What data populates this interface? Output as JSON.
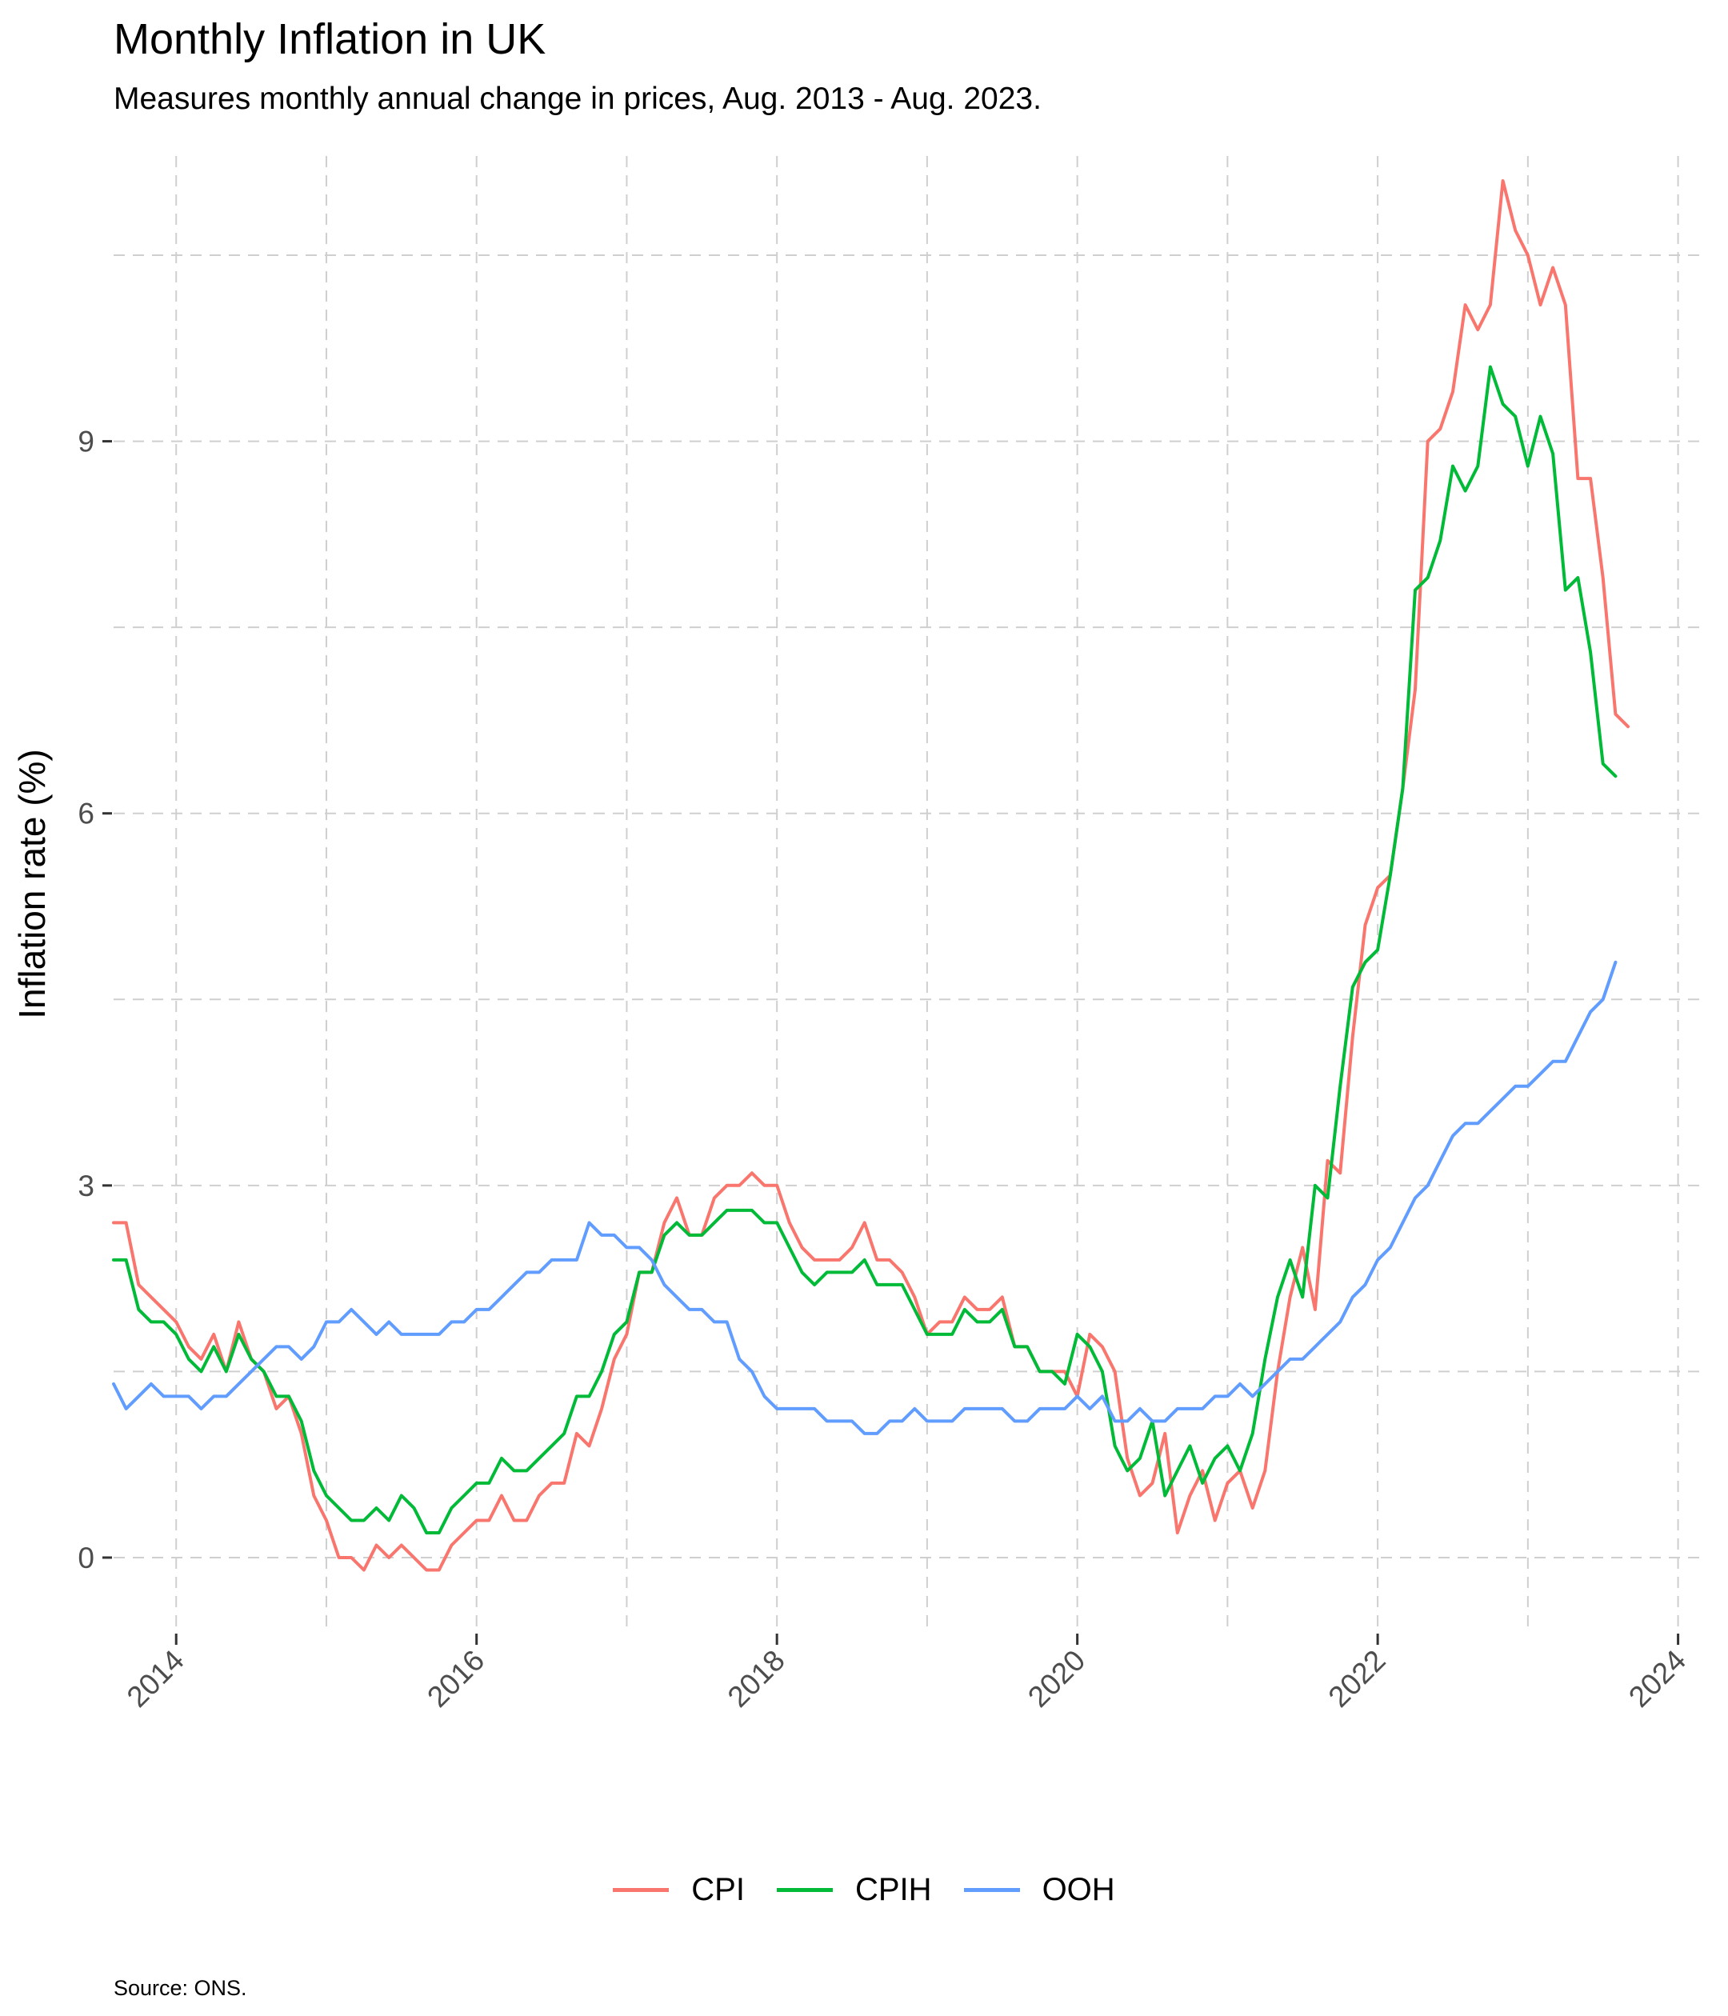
{
  "title": "Monthly Inflation in UK",
  "subtitle": "Measures monthly annual change in prices, Aug. 2013 - Aug. 2023.",
  "caption": "Source: ONS.",
  "chart_data": {
    "type": "line",
    "title": "Monthly Inflation in UK",
    "subtitle": "Measures monthly annual change in prices, Aug. 2013 - Aug. 2023.",
    "xlabel": "",
    "ylabel": "Inflation rate (%)",
    "x_start": "2013-08",
    "x_end": "2023-08",
    "xlim": [
      "2013-08",
      "2024-01"
    ],
    "ylim": [
      -0.6,
      11.3
    ],
    "x_ticks": [
      "2014",
      "2016",
      "2018",
      "2020",
      "2022",
      "2024"
    ],
    "y_ticks": [
      0,
      3,
      6,
      9
    ],
    "grid": true,
    "legend_position": "bottom",
    "series": [
      {
        "name": "CPI",
        "color": "#F8766D",
        "values": [
          2.7,
          2.7,
          2.2,
          2.1,
          2.0,
          1.9,
          1.7,
          1.6,
          1.8,
          1.5,
          1.9,
          1.6,
          1.5,
          1.2,
          1.3,
          1.0,
          0.5,
          0.3,
          0.0,
          0.0,
          -0.1,
          0.1,
          0.0,
          0.1,
          0.0,
          -0.1,
          -0.1,
          0.1,
          0.2,
          0.3,
          0.3,
          0.5,
          0.3,
          0.3,
          0.5,
          0.6,
          0.6,
          1.0,
          0.9,
          1.2,
          1.6,
          1.8,
          2.3,
          2.3,
          2.7,
          2.9,
          2.6,
          2.6,
          2.9,
          3.0,
          3.0,
          3.1,
          3.0,
          3.0,
          2.7,
          2.5,
          2.4,
          2.4,
          2.4,
          2.5,
          2.7,
          2.4,
          2.4,
          2.3,
          2.1,
          1.8,
          1.9,
          1.9,
          2.1,
          2.0,
          2.0,
          2.1,
          1.7,
          1.7,
          1.5,
          1.5,
          1.5,
          1.3,
          1.8,
          1.7,
          1.5,
          0.8,
          0.5,
          0.6,
          1.0,
          0.2,
          0.5,
          0.7,
          0.3,
          0.6,
          0.7,
          0.4,
          0.7,
          1.5,
          2.1,
          2.5,
          2.0,
          3.2,
          3.1,
          4.2,
          5.1,
          5.4,
          5.5,
          6.2,
          7.0,
          9.0,
          9.1,
          9.4,
          10.1,
          9.9,
          10.1,
          11.1,
          10.7,
          10.5,
          10.1,
          10.4,
          10.1,
          8.7,
          8.7,
          7.9,
          6.8,
          6.7
        ]
      },
      {
        "name": "CPIH",
        "color": "#00BA38",
        "values": [
          2.4,
          2.4,
          2.0,
          1.9,
          1.9,
          1.8,
          1.6,
          1.5,
          1.7,
          1.5,
          1.8,
          1.6,
          1.5,
          1.3,
          1.3,
          1.1,
          0.7,
          0.5,
          0.4,
          0.3,
          0.3,
          0.4,
          0.3,
          0.5,
          0.4,
          0.2,
          0.2,
          0.4,
          0.5,
          0.6,
          0.6,
          0.8,
          0.7,
          0.7,
          0.8,
          0.9,
          1.0,
          1.3,
          1.3,
          1.5,
          1.8,
          1.9,
          2.3,
          2.3,
          2.6,
          2.7,
          2.6,
          2.6,
          2.7,
          2.8,
          2.8,
          2.8,
          2.7,
          2.7,
          2.5,
          2.3,
          2.2,
          2.3,
          2.3,
          2.3,
          2.4,
          2.2,
          2.2,
          2.2,
          2.0,
          1.8,
          1.8,
          1.8,
          2.0,
          1.9,
          1.9,
          2.0,
          1.7,
          1.7,
          1.5,
          1.5,
          1.4,
          1.8,
          1.7,
          1.5,
          0.9,
          0.7,
          0.8,
          1.1,
          0.5,
          0.7,
          0.9,
          0.6,
          0.8,
          0.9,
          0.7,
          1.0,
          1.6,
          2.1,
          2.4,
          2.1,
          3.0,
          2.9,
          3.8,
          4.6,
          4.8,
          4.9,
          5.5,
          6.2,
          7.8,
          7.9,
          8.2,
          8.8,
          8.6,
          8.8,
          9.6,
          9.3,
          9.2,
          8.8,
          9.2,
          8.9,
          7.8,
          7.9,
          7.3,
          6.4,
          6.3
        ]
      },
      {
        "name": "OOH",
        "color": "#619CFF",
        "values": [
          1.4,
          1.2,
          1.3,
          1.4,
          1.3,
          1.3,
          1.3,
          1.2,
          1.3,
          1.3,
          1.4,
          1.5,
          1.6,
          1.7,
          1.7,
          1.6,
          1.7,
          1.9,
          1.9,
          2.0,
          1.9,
          1.8,
          1.9,
          1.8,
          1.8,
          1.8,
          1.8,
          1.9,
          1.9,
          2.0,
          2.0,
          2.1,
          2.2,
          2.3,
          2.3,
          2.4,
          2.4,
          2.4,
          2.7,
          2.6,
          2.6,
          2.5,
          2.5,
          2.4,
          2.2,
          2.1,
          2.0,
          2.0,
          1.9,
          1.9,
          1.6,
          1.5,
          1.3,
          1.2,
          1.2,
          1.2,
          1.2,
          1.1,
          1.1,
          1.1,
          1.0,
          1.0,
          1.1,
          1.1,
          1.2,
          1.1,
          1.1,
          1.1,
          1.2,
          1.2,
          1.2,
          1.2,
          1.1,
          1.1,
          1.2,
          1.2,
          1.2,
          1.3,
          1.2,
          1.3,
          1.1,
          1.1,
          1.2,
          1.1,
          1.1,
          1.2,
          1.2,
          1.2,
          1.3,
          1.3,
          1.4,
          1.3,
          1.4,
          1.5,
          1.6,
          1.6,
          1.7,
          1.8,
          1.9,
          2.1,
          2.2,
          2.4,
          2.5,
          2.7,
          2.9,
          3.0,
          3.2,
          3.4,
          3.5,
          3.5,
          3.6,
          3.7,
          3.8,
          3.8,
          3.9,
          4.0,
          4.0,
          4.2,
          4.4,
          4.5,
          4.8
        ]
      }
    ]
  }
}
